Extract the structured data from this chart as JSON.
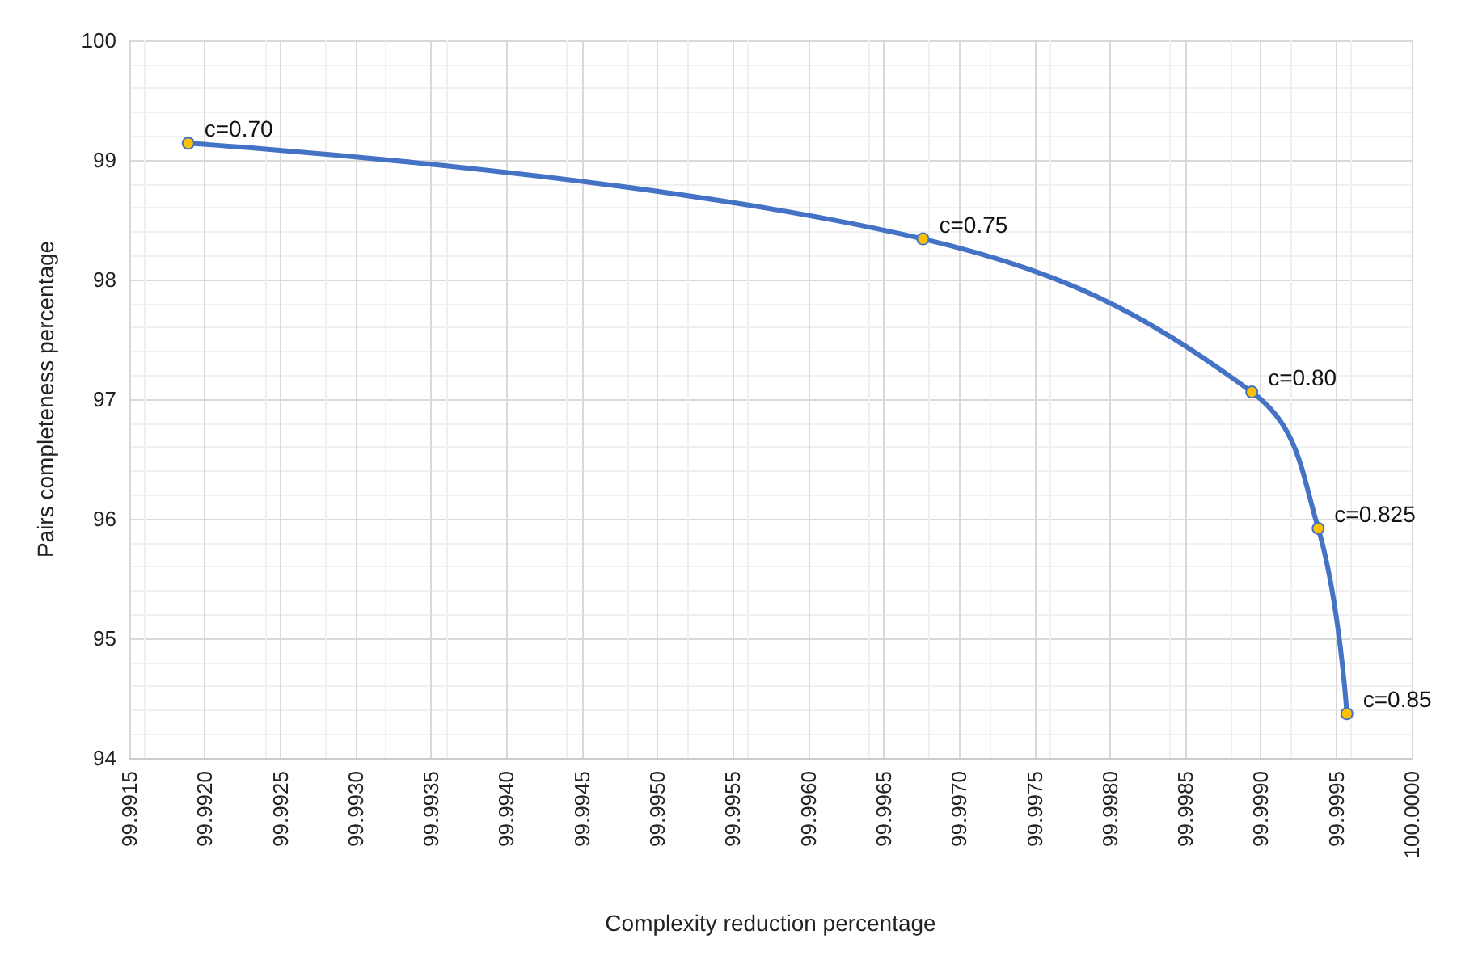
{
  "chart_data": {
    "type": "line",
    "xlabel": "Complexity reduction percentage",
    "ylabel": "Pairs completeness percentage",
    "x": [
      99.99189,
      99.99676,
      99.99894,
      99.99938,
      99.99957
    ],
    "series": [
      {
        "color": "#4472c4",
        "colors": [
          "#ffc000",
          "#ffc000",
          "#ffc000",
          "#ffc000",
          "#ffc000"
        ],
        "values": [
          99.14,
          98.34,
          97.06,
          95.92,
          94.37
        ]
      }
    ],
    "annotations": [
      {
        "text": "c=0.70",
        "x": 99.99189,
        "y": 99.14
      },
      {
        "text": "c=0.75",
        "x": 99.99676,
        "y": 98.34
      },
      {
        "text": "c=0.80",
        "x": 99.99894,
        "y": 97.06
      },
      {
        "text": "c=0.825",
        "x": 99.99938,
        "y": 95.92
      },
      {
        "text": "c=0.85",
        "x": 99.99957,
        "y": 94.37
      }
    ],
    "xlim": [
      99.9915,
      100.0
    ],
    "xticks": [
      {
        "value": 99.9915,
        "label": "99.9915"
      },
      {
        "value": 99.992,
        "label": "99.9920"
      },
      {
        "value": 99.9925,
        "label": "99.9925"
      },
      {
        "value": 99.993,
        "label": "99.9930"
      },
      {
        "value": 99.9935,
        "label": "99.9935"
      },
      {
        "value": 99.994,
        "label": "99.9940"
      },
      {
        "value": 99.9945,
        "label": "99.9945"
      },
      {
        "value": 99.995,
        "label": "99.9950"
      },
      {
        "value": 99.9955,
        "label": "99.9955"
      },
      {
        "value": 99.996,
        "label": "99.9960"
      },
      {
        "value": 99.9965,
        "label": "99.9965"
      },
      {
        "value": 99.997,
        "label": "99.9970"
      },
      {
        "value": 99.9975,
        "label": "99.9975"
      },
      {
        "value": 99.998,
        "label": "99.9980"
      },
      {
        "value": 99.9985,
        "label": "99.9985"
      },
      {
        "value": 99.999,
        "label": "99.9990"
      },
      {
        "value": 99.9995,
        "label": "99.9995"
      },
      {
        "value": 100.0,
        "label": "100.0000"
      }
    ],
    "ylim": [
      94,
      100
    ],
    "yticks": [
      94,
      95,
      96,
      97,
      98,
      99,
      100
    ],
    "grid": true,
    "marker": "circle",
    "line_style": "solid"
  }
}
